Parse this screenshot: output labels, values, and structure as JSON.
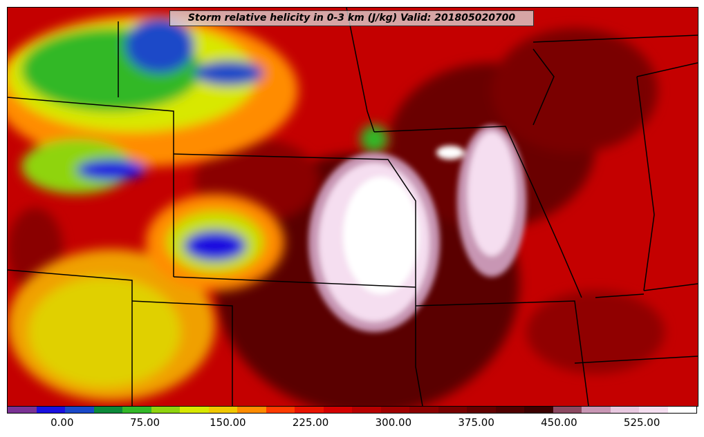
{
  "title": "Storm relative helicity in 0-3 km (J/kg) Valid: 201805020700",
  "colorbar": {
    "tick_labels": [
      "0.00",
      "75.00",
      "150.00",
      "225.00",
      "300.00",
      "375.00",
      "450.00",
      "525.00"
    ],
    "tick_values": [
      0,
      75,
      150,
      225,
      300,
      375,
      450,
      525
    ],
    "min": -50,
    "max": 575,
    "colors": [
      "#7b3294",
      "#1a10e0",
      "#1a48c8",
      "#0c8a3a",
      "#33b828",
      "#8fd40f",
      "#d8e800",
      "#f0c800",
      "#ff8c00",
      "#ff3c00",
      "#e81400",
      "#d40000",
      "#b80000",
      "#a00000",
      "#8c0000",
      "#780000",
      "#640000",
      "#500000",
      "#3c0000",
      "#8c4a62",
      "#c896b4",
      "#e8c8e0",
      "#f5def0",
      "#ffffff"
    ]
  }
}
